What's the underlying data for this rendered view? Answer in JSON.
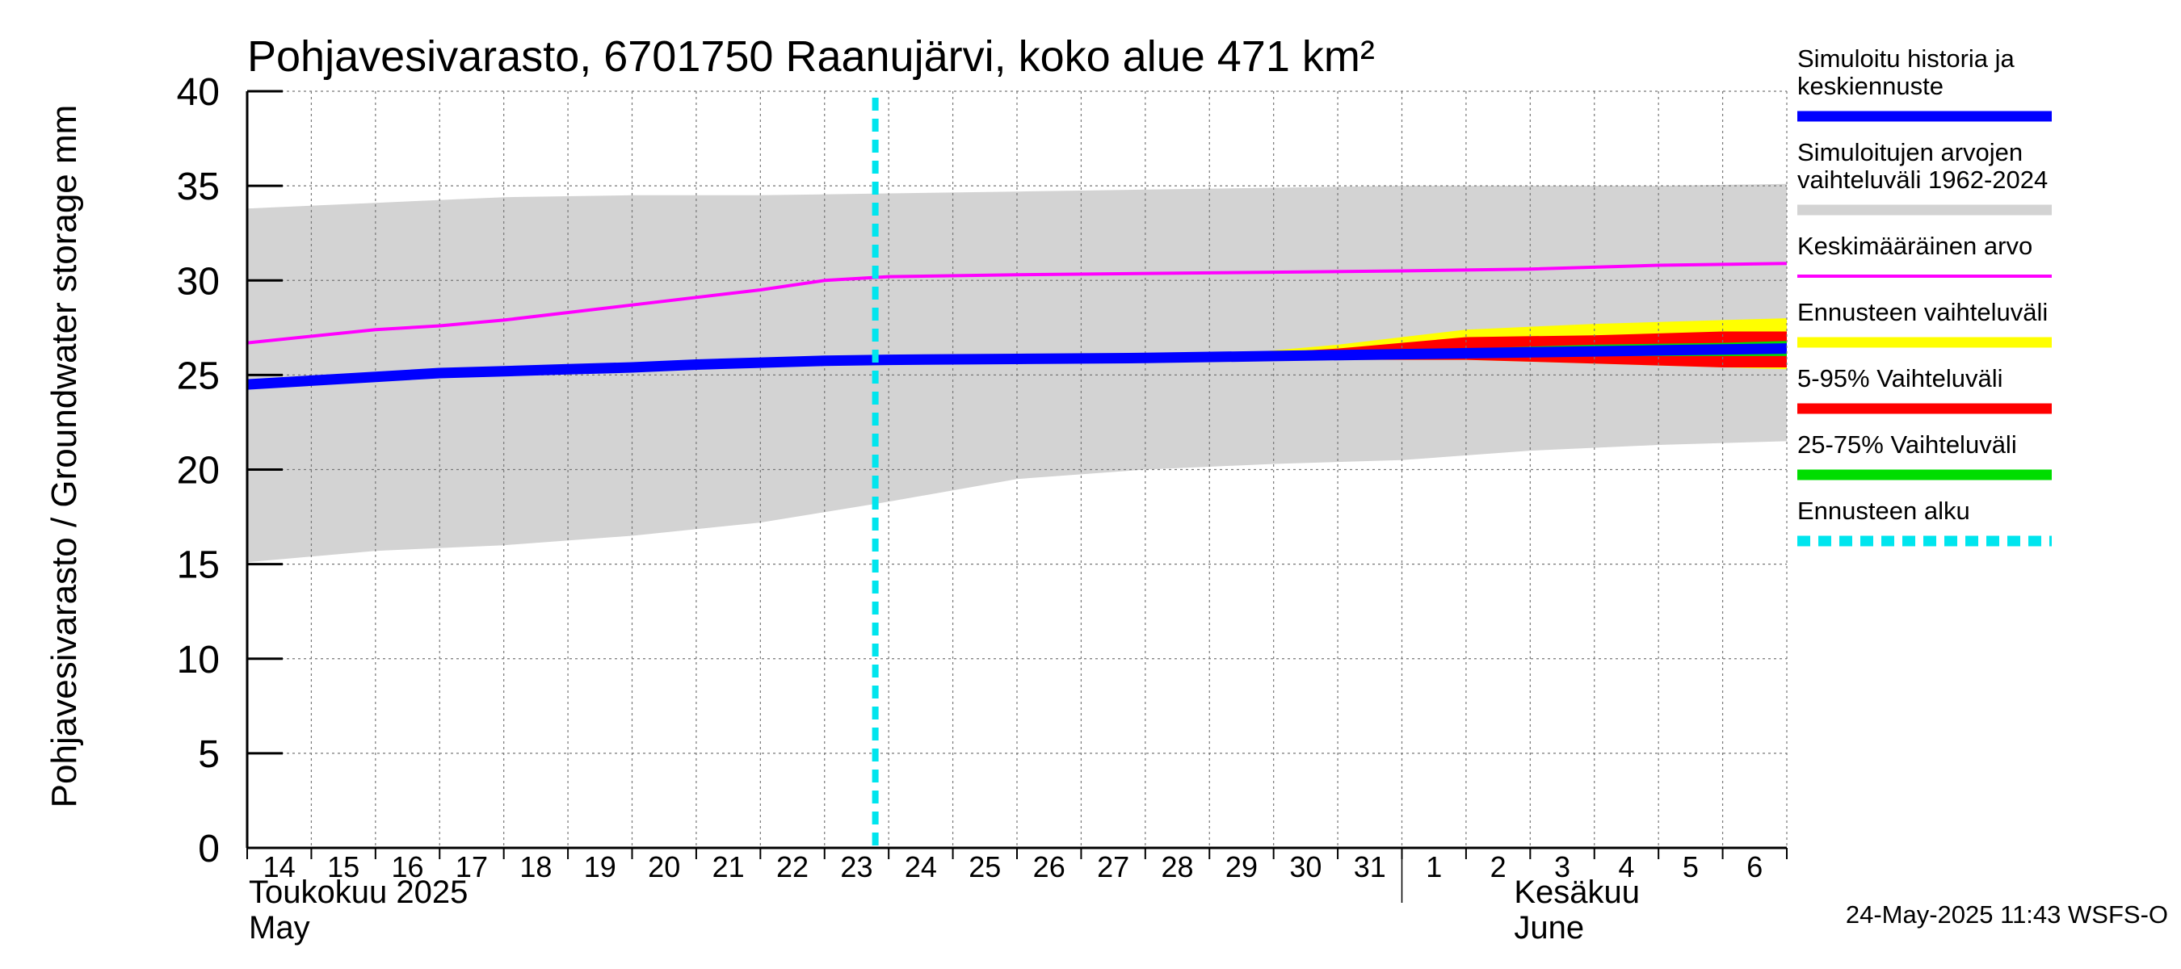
{
  "chart_data": {
    "type": "area",
    "title": "Pohjavesivarasto, 6701750 Raanujärvi, koko alue 471 km²",
    "ylabel": "Pohjavesivarasto / Groundwater storage   mm",
    "ylim": [
      0,
      40
    ],
    "yticks": [
      "0",
      "5",
      "10",
      "15",
      "20",
      "25",
      "30",
      "35",
      "40"
    ],
    "grid": true,
    "x_start": "2025-05-14",
    "x_end": "2025-06-07",
    "forecast_start": "2025-05-23T19:00",
    "xtick_labels": [
      "14",
      "15",
      "16",
      "17",
      "18",
      "19",
      "20",
      "21",
      "22",
      "23",
      "24",
      "25",
      "26",
      "27",
      "28",
      "29",
      "30",
      "31",
      "1",
      "2",
      "3",
      "4",
      "5",
      "6"
    ],
    "month_labels": [
      {
        "fi": "Toukokuu  2025",
        "en": "May"
      },
      {
        "fi": "Kesäkuu",
        "en": "June"
      }
    ],
    "legend_placement": "right",
    "series": [
      {
        "name": "Simuloitujen arvojen vaihteluväli 1962-2024",
        "kind": "band",
        "color": "#d3d3d3",
        "x": [
          "2025-05-14",
          "2025-05-16",
          "2025-05-18",
          "2025-05-20",
          "2025-05-22",
          "2025-05-24",
          "2025-05-26",
          "2025-05-28",
          "2025-05-30",
          "2025-06-01",
          "2025-06-03",
          "2025-06-05",
          "2025-06-07"
        ],
        "low": [
          15.1,
          15.7,
          16.0,
          16.5,
          17.2,
          18.3,
          19.5,
          20.0,
          20.3,
          20.5,
          21.0,
          21.3,
          21.5
        ],
        "high": [
          33.8,
          34.1,
          34.4,
          34.5,
          34.5,
          34.6,
          34.7,
          34.8,
          34.9,
          35.0,
          35.0,
          35.0,
          35.1
        ]
      },
      {
        "name": "Ennusteen vaihteluväli",
        "kind": "band",
        "color": "#ffff00",
        "x": [
          "2025-05-29",
          "2025-05-31",
          "2025-06-02",
          "2025-06-04",
          "2025-06-06",
          "2025-06-07"
        ],
        "low": [
          25.8,
          25.8,
          25.8,
          25.6,
          25.4,
          25.3
        ],
        "high": [
          26.0,
          26.6,
          27.4,
          27.7,
          27.9,
          28.0
        ]
      },
      {
        "name": "5-95% Vaihteluväli",
        "kind": "band",
        "color": "#ff0000",
        "x": [
          "2025-05-29",
          "2025-05-31",
          "2025-06-02",
          "2025-06-04",
          "2025-06-06",
          "2025-06-07"
        ],
        "low": [
          25.8,
          25.8,
          25.8,
          25.6,
          25.4,
          25.4
        ],
        "high": [
          26.0,
          26.4,
          27.0,
          27.1,
          27.3,
          27.3
        ]
      },
      {
        "name": "25-75% Vaihteluväli",
        "kind": "band",
        "color": "#00dd00",
        "x": [
          "2025-05-29",
          "2025-05-31",
          "2025-06-02",
          "2025-06-04",
          "2025-06-06",
          "2025-06-07"
        ],
        "low": [
          25.9,
          26.0,
          26.0,
          26.0,
          26.0,
          26.0
        ],
        "high": [
          26.0,
          26.2,
          26.4,
          26.6,
          26.7,
          26.8
        ]
      },
      {
        "name": "Keskimääräinen arvo",
        "kind": "line",
        "color": "#ff00ff",
        "x": [
          "2025-05-14",
          "2025-05-16",
          "2025-05-17",
          "2025-05-18",
          "2025-05-20",
          "2025-05-22",
          "2025-05-23",
          "2025-05-24",
          "2025-05-26",
          "2025-05-29",
          "2025-06-01",
          "2025-06-03",
          "2025-06-05",
          "2025-06-07"
        ],
        "values": [
          26.7,
          27.4,
          27.6,
          27.9,
          28.7,
          29.5,
          30.0,
          30.2,
          30.3,
          30.4,
          30.5,
          30.6,
          30.8,
          30.9
        ]
      },
      {
        "name": "Simuloitu historia ja keskiennuste",
        "kind": "line",
        "color": "#0000ff",
        "x": [
          "2025-05-14",
          "2025-05-15",
          "2025-05-16",
          "2025-05-17",
          "2025-05-18",
          "2025-05-19",
          "2025-05-20",
          "2025-05-21",
          "2025-05-22",
          "2025-05-23",
          "2025-05-24",
          "2025-05-26",
          "2025-05-28",
          "2025-05-30",
          "2025-06-01",
          "2025-06-03",
          "2025-06-05",
          "2025-06-07"
        ],
        "values": [
          24.5,
          24.7,
          24.9,
          25.1,
          25.2,
          25.3,
          25.4,
          25.55,
          25.65,
          25.75,
          25.8,
          25.85,
          25.9,
          26.0,
          26.1,
          26.2,
          26.3,
          26.4
        ]
      },
      {
        "name": "Ennusteen alku",
        "kind": "vline",
        "color": "#00e5ee",
        "x": "2025-05-23T19:00"
      }
    ]
  },
  "legend": [
    {
      "lines": [
        "Simuloitu historia ja",
        "keskiennuste"
      ],
      "color": "#0000ff",
      "style": "solid",
      "thick": true
    },
    {
      "lines": [
        "Simuloitujen arvojen",
        "vaihteluväli 1962-2024"
      ],
      "color": "#d3d3d3",
      "style": "solid",
      "thick": true
    },
    {
      "lines": [
        "Keskimääräinen arvo"
      ],
      "color": "#ff00ff",
      "style": "solid",
      "thick": false
    },
    {
      "lines": [
        "Ennusteen vaihteluväli"
      ],
      "color": "#ffff00",
      "style": "solid",
      "thick": true
    },
    {
      "lines": [
        "5-95% Vaihteluväli"
      ],
      "color": "#ff0000",
      "style": "solid",
      "thick": true
    },
    {
      "lines": [
        "25-75% Vaihteluväli"
      ],
      "color": "#00dd00",
      "style": "solid",
      "thick": true
    },
    {
      "lines": [
        "Ennusteen alku"
      ],
      "color": "#00e5ee",
      "style": "dashed",
      "thick": true
    }
  ],
  "footer": "24-May-2025 11:43 WSFS-O"
}
